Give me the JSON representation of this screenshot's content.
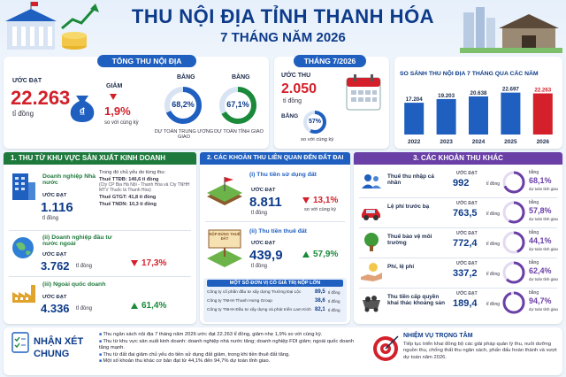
{
  "header": {
    "title": "THU NỘI ĐỊA TỈNH THANH HÓA",
    "subtitle": "7 THÁNG NĂM 2026"
  },
  "total": {
    "head": "TỔNG THU NỘI ĐỊA",
    "estimate_label": "ƯỚC ĐẠT",
    "value": "22.263",
    "unit": "tỉ đồng",
    "decrease_label": "GIẢM",
    "decrease_value": "1,9%",
    "decrease_note": "so với cùng kỳ",
    "ring1": {
      "label": "BẰNG",
      "value": "68,2%",
      "fraction": 0.682,
      "note": "DỰ TOÁN TRUNG ƯƠNG GIAO"
    },
    "ring2": {
      "label": "BẰNG",
      "value": "67,1%",
      "fraction": 0.671,
      "note": "DỰ TOÁN TỈNH GIAO"
    }
  },
  "month": {
    "head": "THÁNG 7/2026",
    "estimate_label": "ƯỚC THU",
    "value": "2.050",
    "unit": "tỉ đồng",
    "equal_label": "BẰNG",
    "ring_value": "57%",
    "fraction": 0.57,
    "note": "so với cùng kỳ"
  },
  "compare": {
    "head": "SO SÁNH THU NỘI ĐỊA 7 THÁNG QUA CÁC NĂM",
    "accent": "#d3202a",
    "bar_color": "#1f5fbf"
  },
  "chart_data": {
    "type": "bar",
    "title": "SO SÁNH THU NỘI ĐỊA 7 THÁNG QUA CÁC NĂM",
    "categories": [
      "2022",
      "2023",
      "2024",
      "2025",
      "2026"
    ],
    "values": [
      17204,
      19203,
      20638,
      22697,
      22263
    ],
    "value_labels": [
      "17.204",
      "19.203",
      "20.638",
      "22.697",
      "22.263"
    ],
    "ylim": [
      0,
      23000
    ]
  },
  "sec1": {
    "head": "1. THU TỪ KHU VỰC SẢN XUẤT KINH DOANH",
    "items": [
      {
        "name": "Doanh nghiệp Nhà nước",
        "estimate_label": "ƯỚC ĐẠT",
        "value": "1.116",
        "unit": "tỉ đồng",
        "change": "",
        "icon": "building-icon"
      },
      {
        "name": "(ii) Doanh nghiệp đầu tư nước ngoài",
        "estimate_label": "ƯỚC ĐẠT",
        "value": "3.762",
        "unit": "tỉ đồng",
        "change": "17,3%",
        "dir": "down",
        "icon": "globe-icon"
      },
      {
        "name": "(iii) Ngoài quốc doanh",
        "estimate_label": "ƯỚC ĐẠT",
        "value": "4.336",
        "unit": "tỉ đồng",
        "change": "61,4%",
        "dir": "up",
        "icon": "factory-icon"
      }
    ],
    "detail_title": "Trong đó chủ yếu do từng thu:",
    "details": [
      "Thuế TTĐB: 146,6 tỉ đồng",
      "(Cty CP Bia Hà Nội - Thanh Hóa và Cty TNHH MTV Thuốc lá Thanh Hóa)",
      "Thuế GTGT: 41,8 tỉ đồng",
      "Thuế TNDN: 10,3 tỉ đồng"
    ]
  },
  "sec2": {
    "head": "2. CÁC KHOẢN THU LIÊN QUAN ĐẾN ĐẤT ĐAI",
    "land_use": {
      "name": "(i) Thu tiền sử dụng đất",
      "estimate_label": "ƯỚC ĐẠT",
      "value": "8.811",
      "unit": "tỉ đồng",
      "change": "13,1%",
      "note": "so với cùng kỳ"
    },
    "land_rent": {
      "name": "(ii) Thu tiền thuê đất",
      "estimate_label": "ƯỚC ĐẠT",
      "value": "439,9",
      "unit": "tỉ đồng",
      "change": "57,9%",
      "sign": "NỘP ĐÚNG THUẾ ĐẤT"
    },
    "top_title": "MỘT SỐ ĐƠN VỊ CÓ GIÁ TRỊ NỘP LỚN",
    "top": [
      {
        "name": "Công ty cổ phần đầu tư xây dựng Trường Đại Lộc",
        "value": "89,5",
        "unit": "tỉ đồng"
      },
      {
        "name": "Công ty TNHH Thanh Hưng Group",
        "value": "38,6",
        "unit": "tỉ đồng"
      },
      {
        "name": "Công ty TNHH Đầu tư xây dựng và phát triển Lam Kinh",
        "value": "82,1",
        "unit": "tỉ đồng"
      }
    ]
  },
  "sec3": {
    "head": "3. CÁC KHOẢN THU KHÁC",
    "items": [
      {
        "name": "Thuế thu nhập cá nhân",
        "estimate_label": "ƯỚC ĐẠT",
        "value": "992",
        "unit": "tỉ đồng",
        "pct_label": "bằng",
        "pct": "68,1%",
        "fraction": 0.681,
        "pct_note": "dự toán tỉnh giao",
        "icon": "people-icon"
      },
      {
        "name": "Lệ phí trước bạ",
        "estimate_label": "ƯỚC ĐẠT",
        "value": "763,5",
        "unit": "tỉ đồng",
        "pct_label": "bằng",
        "pct": "57,8%",
        "fraction": 0.578,
        "pct_note": "dự toán tỉnh giao",
        "icon": "car-icon"
      },
      {
        "name": "Thuế bảo vệ môi trường",
        "estimate_label": "ƯỚC ĐẠT",
        "value": "772,4",
        "unit": "tỉ đồng",
        "pct_label": "bằng",
        "pct": "44,1%",
        "fraction": 0.441,
        "pct_note": "dự toán tỉnh giao",
        "icon": "tree-icon"
      },
      {
        "name": "Phí, lệ phí",
        "estimate_label": "ƯỚC ĐẠT",
        "value": "337,2",
        "unit": "tỉ đồng",
        "pct_label": "bằng",
        "pct": "62,4%",
        "fraction": 0.624,
        "pct_note": "dự toán tỉnh giao",
        "icon": "hand-coin-icon"
      },
      {
        "name": "Thu tiền cấp quyền khai thác khoáng sản",
        "estimate_label": "ƯỚC ĐẠT",
        "value": "189,4",
        "unit": "tỉ đồng",
        "pct_label": "bằng",
        "pct": "94,7%",
        "fraction": 0.947,
        "pct_note": "dự toán tỉnh giao",
        "icon": "mine-cart-icon"
      }
    ]
  },
  "summary": {
    "head_1": "NHẬN XÉT",
    "head_2": "CHUNG",
    "bullets": [
      "Thu ngân sách nội địa 7 tháng năm 2026 ước đạt 22.263 tỉ đồng, giảm nhẹ 1,9% so với cùng kỳ.",
      "Thu từ khu vực sản xuất kinh doanh: doanh nghiệp nhà nước tăng; doanh nghiệp FDI giảm; ngoài quốc doanh tăng mạnh.",
      "Thu từ đất đai giảm chủ yếu do tiền sử dụng đất giảm, trong khi tiền thuê đất tăng.",
      "Một số khoản thu khác cơ bản đạt từ 44,1% đến 94,7% dự toán tỉnh giao."
    ],
    "task_head": "NHIỆM VỤ TRỌNG TÂM",
    "task_text": "Tiếp tục triển khai đồng bộ các giải pháp quản lý thu, nuôi dưỡng nguồn thu, chống thất thu ngân sách, phấn đấu hoàn thành và vượt dự toán năm 2026."
  }
}
